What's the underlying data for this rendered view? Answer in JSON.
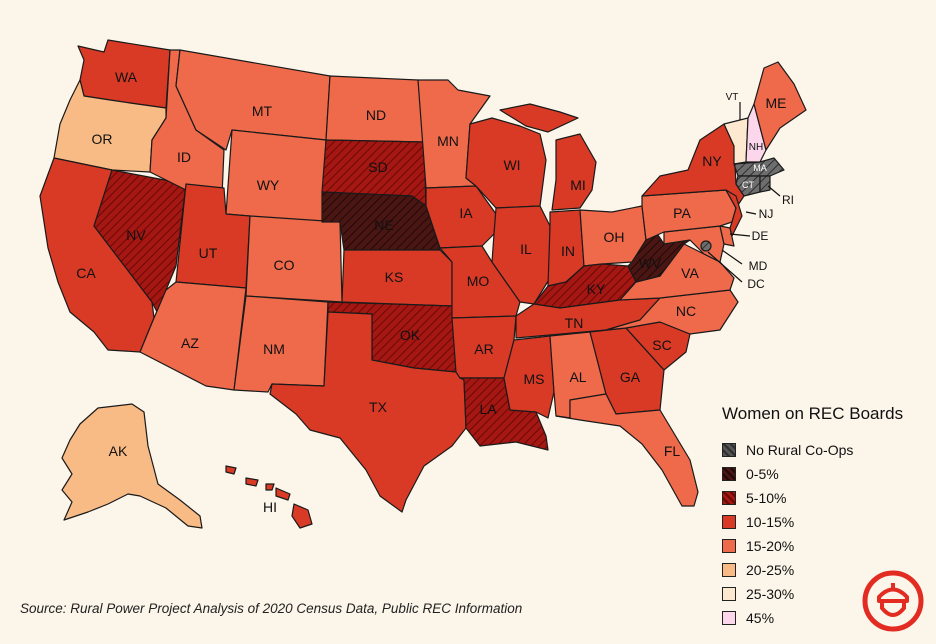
{
  "legend": {
    "title": "Women on REC Boards",
    "items": [
      {
        "label": "No Rural Co-Ops",
        "color": "#555555",
        "pattern": "hatch"
      },
      {
        "label": "0-5%",
        "color": "#4a1613",
        "pattern": "hatch"
      },
      {
        "label": "5-10%",
        "color": "#a51713",
        "pattern": "hatch"
      },
      {
        "label": "10-15%",
        "color": "#d93a26",
        "pattern": "solid"
      },
      {
        "label": "15-20%",
        "color": "#ef6a4b",
        "pattern": "solid"
      },
      {
        "label": "20-25%",
        "color": "#f9bb85",
        "pattern": "solid"
      },
      {
        "label": "25-30%",
        "color": "#fde9d0",
        "pattern": "solid"
      },
      {
        "label": "45%",
        "color": "#fcd6ea",
        "pattern": "solid"
      }
    ]
  },
  "source": "Source: Rural Power Project Analysis of 2020 Census Data, Public REC Information",
  "states": [
    {
      "code": "WA",
      "category": "10-15%"
    },
    {
      "code": "OR",
      "category": "20-25%"
    },
    {
      "code": "CA",
      "category": "10-15%"
    },
    {
      "code": "NV",
      "category": "5-10%"
    },
    {
      "code": "ID",
      "category": "15-20%"
    },
    {
      "code": "MT",
      "category": "15-20%"
    },
    {
      "code": "WY",
      "category": "15-20%"
    },
    {
      "code": "UT",
      "category": "10-15%"
    },
    {
      "code": "AZ",
      "category": "15-20%"
    },
    {
      "code": "CO",
      "category": "15-20%"
    },
    {
      "code": "NM",
      "category": "15-20%"
    },
    {
      "code": "ND",
      "category": "15-20%"
    },
    {
      "code": "SD",
      "category": "5-10%"
    },
    {
      "code": "NE",
      "category": "0-5%"
    },
    {
      "code": "KS",
      "category": "10-15%"
    },
    {
      "code": "OK",
      "category": "5-10%"
    },
    {
      "code": "TX",
      "category": "10-15%"
    },
    {
      "code": "MN",
      "category": "15-20%"
    },
    {
      "code": "IA",
      "category": "10-15%"
    },
    {
      "code": "MO",
      "category": "10-15%"
    },
    {
      "code": "AR",
      "category": "10-15%"
    },
    {
      "code": "LA",
      "category": "5-10%"
    },
    {
      "code": "WI",
      "category": "10-15%"
    },
    {
      "code": "IL",
      "category": "10-15%"
    },
    {
      "code": "MI",
      "category": "10-15%"
    },
    {
      "code": "IN",
      "category": "10-15%"
    },
    {
      "code": "OH",
      "category": "15-20%"
    },
    {
      "code": "KY",
      "category": "5-10%"
    },
    {
      "code": "TN",
      "category": "10-15%"
    },
    {
      "code": "MS",
      "category": "10-15%"
    },
    {
      "code": "AL",
      "category": "15-20%"
    },
    {
      "code": "GA",
      "category": "10-15%"
    },
    {
      "code": "FL",
      "category": "15-20%"
    },
    {
      "code": "SC",
      "category": "10-15%"
    },
    {
      "code": "NC",
      "category": "15-20%"
    },
    {
      "code": "VA",
      "category": "15-20%"
    },
    {
      "code": "WV",
      "category": "0-5%"
    },
    {
      "code": "PA",
      "category": "15-20%"
    },
    {
      "code": "NY",
      "category": "10-15%"
    },
    {
      "code": "NJ",
      "category": "10-15%"
    },
    {
      "code": "DE",
      "category": "15-20%"
    },
    {
      "code": "MD",
      "category": "15-20%"
    },
    {
      "code": "DC",
      "category": "No Rural Co-Ops"
    },
    {
      "code": "VT",
      "category": "25-30%"
    },
    {
      "code": "NH",
      "category": "45%"
    },
    {
      "code": "ME",
      "category": "15-20%"
    },
    {
      "code": "MA",
      "category": "No Rural Co-Ops"
    },
    {
      "code": "CT",
      "category": "No Rural Co-Ops"
    },
    {
      "code": "RI",
      "category": "No Rural Co-Ops"
    },
    {
      "code": "AK",
      "category": "20-25%"
    },
    {
      "code": "HI",
      "category": "10-15%"
    }
  ]
}
